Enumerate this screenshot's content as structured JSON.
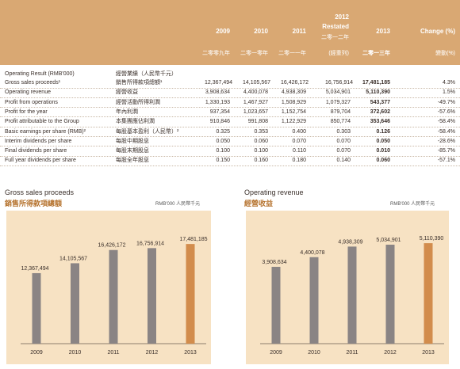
{
  "header": {
    "years": [
      "2009",
      "2010",
      "2011",
      "2012",
      "2013"
    ],
    "restated_top": "2012",
    "restated_label": "Restated",
    "restated_cn": "二零一二年",
    "change_label": "Change (%)",
    "years_cn": [
      "二零零九年",
      "二零一零年",
      "二零一一年",
      "(經重列)",
      "二零一三年"
    ],
    "change_cn": "變動(%)"
  },
  "table": {
    "section": {
      "en": "Operating Result (RMB'000)",
      "cn": "經營業績（人民幣千元）"
    },
    "rows": [
      {
        "en": "Gross sales proceeds¹",
        "cn": "銷售所得款項總額¹",
        "v": [
          "12,367,494",
          "14,105,567",
          "16,426,172",
          "16,756,914",
          "17,481,185"
        ],
        "chg": "4.3%"
      },
      {
        "en": "Operating revenue",
        "cn": "經營收益",
        "v": [
          "3,908,634",
          "4,400,078",
          "4,938,309",
          "5,034,901",
          "5,110,390"
        ],
        "chg": "1.5%"
      },
      {
        "en": "Profit from operations",
        "cn": "經營活動所得利潤",
        "v": [
          "1,330,193",
          "1,467,927",
          "1,508,929",
          "1,079,327",
          "543,377"
        ],
        "chg": "-49.7%"
      },
      {
        "en": "Profit for the year",
        "cn": "年內利潤",
        "v": [
          "937,354",
          "1,023,657",
          "1,152,754",
          "879,704",
          "372,602"
        ],
        "chg": "-57.6%"
      },
      {
        "en": "Profit attributable to the Group",
        "cn": "本集團應佔利潤",
        "v": [
          "910,846",
          "991,808",
          "1,122,929",
          "850,774",
          "353,646"
        ],
        "chg": "-58.4%"
      },
      {
        "en": "Basic earnings per share (RMB)²",
        "cn": "每股基本盈利（人民幣）²",
        "v": [
          "0.325",
          "0.353",
          "0.400",
          "0.303",
          "0.126"
        ],
        "chg": "-58.4%"
      },
      {
        "en": "Interim dividends per share",
        "cn": "每股中期股息",
        "v": [
          "0.050",
          "0.060",
          "0.070",
          "0.070",
          "0.050"
        ],
        "chg": "-28.6%"
      },
      {
        "en": "Final dividends per share",
        "cn": "每股末期股息",
        "v": [
          "0.100",
          "0.100",
          "0.110",
          "0.070",
          "0.010"
        ],
        "chg": "-85.7%"
      },
      {
        "en": "Full year dividends per share",
        "cn": "每股全年股息",
        "v": [
          "0.150",
          "0.160",
          "0.180",
          "0.140",
          "0.060"
        ],
        "chg": "-57.1%"
      }
    ]
  },
  "charts": [
    {
      "title": "Gross sales proceeds",
      "title_cn": "銷售所得款項總額",
      "unit": "RMB'000 人民幣千元"
    },
    {
      "title": "Operating revenue",
      "title_cn": "經營收益",
      "unit": "RMB'000 人民幣千元"
    }
  ],
  "chart_data": [
    {
      "type": "bar",
      "title": "Gross sales proceeds",
      "categories": [
        "2009",
        "2010",
        "2011",
        "2012",
        "2013"
      ],
      "values": [
        12367494,
        14105567,
        16426172,
        16756914,
        17481185
      ],
      "labels": [
        "12,367,494",
        "14,105,567",
        "16,426,172",
        "16,756,914",
        "17,481,185"
      ],
      "ylim": [
        0,
        20000000
      ],
      "colors": [
        "#8a8484",
        "#8a8484",
        "#8a8484",
        "#8a8484",
        "#d28c4c"
      ]
    },
    {
      "type": "bar",
      "title": "Operating revenue",
      "categories": [
        "2009",
        "2010",
        "2011",
        "2012",
        "2013"
      ],
      "values": [
        3908634,
        4400078,
        4938309,
        5034901,
        5110390
      ],
      "labels": [
        "3,908,634",
        "4,400,078",
        "4,938,309",
        "5,034,901",
        "5,110,390"
      ],
      "ylim": [
        0,
        5800000
      ],
      "colors": [
        "#8a8484",
        "#8a8484",
        "#8a8484",
        "#8a8484",
        "#d28c4c"
      ]
    }
  ]
}
